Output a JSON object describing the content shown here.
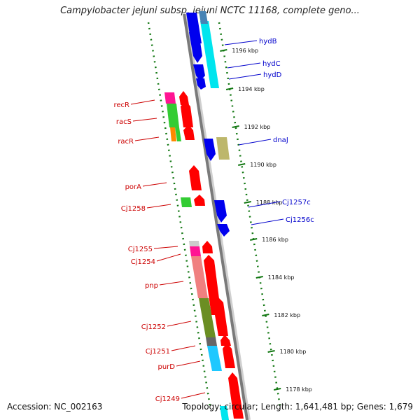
{
  "title": "Campylobacter jejuni subsp. jejuni NCTC 11168, complete geno...",
  "footer": {
    "accession": "Accession: NC_002163",
    "summary": "Topology: circular; Length: 1,641,481 bp; Genes: 1,679"
  },
  "tick_labels": [
    "1196 kbp",
    "1194 kbp",
    "1192 kbp",
    "1190 kbp",
    "1188 kbp",
    "1186 kbp",
    "1184 kbp",
    "1182 kbp",
    "1180 kbp",
    "1178 kbp"
  ],
  "genes_left": [
    "recR",
    "racS",
    "racR",
    "porA",
    "Cj1258",
    "Cj1255",
    "Cj1254",
    "pnp",
    "Cj1252",
    "Cj1251",
    "purD",
    "Cj1249"
  ],
  "genes_right": [
    "hydB",
    "hydC",
    "hydD",
    "dnaJ",
    "Cj1257c",
    "Cj1256c"
  ],
  "colors": {
    "forward_strand": "#ff0000",
    "reverse_strand": "#0000ff",
    "left_label": "#cc0000",
    "right_label": "#0000cc",
    "tick": "#117711"
  }
}
